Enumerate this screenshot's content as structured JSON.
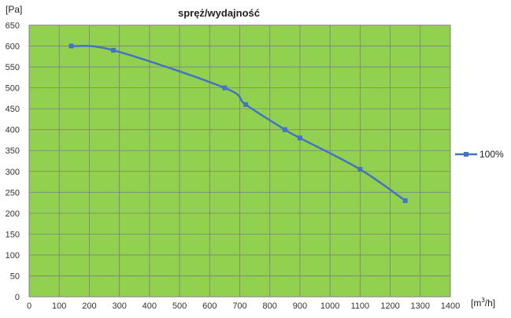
{
  "chart_data": {
    "type": "line",
    "title": "spręż/wydajność",
    "ylabel": "[Pa]",
    "xlabel_base": "[m",
    "xlabel_sup": "3",
    "xlabel_tail": "/h]",
    "xlim": [
      0,
      1400
    ],
    "ylim": [
      0,
      650
    ],
    "x_ticks": [
      0,
      100,
      200,
      300,
      400,
      500,
      600,
      700,
      800,
      900,
      1000,
      1100,
      1200,
      1300,
      1400
    ],
    "y_ticks": [
      0,
      50,
      100,
      150,
      200,
      250,
      300,
      350,
      400,
      450,
      500,
      550,
      600,
      650
    ],
    "grid": true,
    "legend_position": "right",
    "plot_background": "#92d050",
    "series": [
      {
        "name": "100%",
        "color": "#4472c4",
        "x": [
          140,
          280,
          650,
          720,
          850,
          900,
          1100,
          1250
        ],
        "y": [
          600,
          590,
          500,
          460,
          400,
          380,
          305,
          230
        ]
      }
    ]
  }
}
